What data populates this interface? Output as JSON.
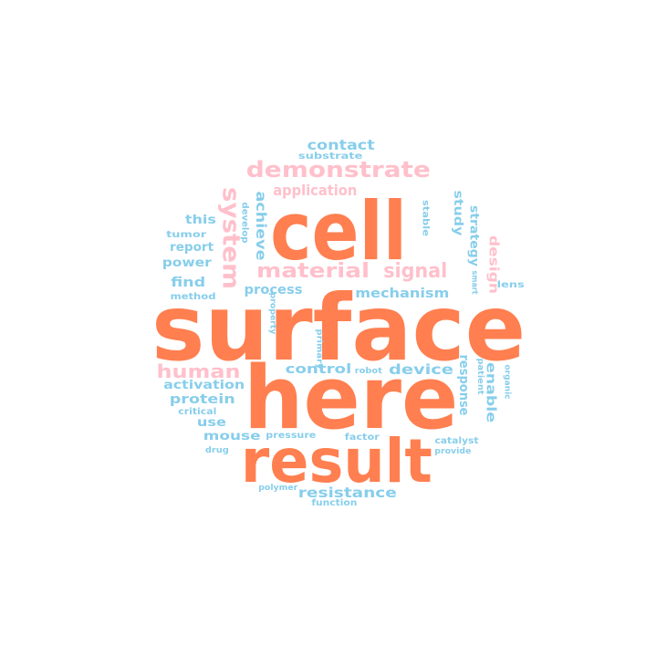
{
  "colors": {
    "orange": "#ff7f50",
    "pink": "#ffc0cb",
    "blue": "#87ceeb"
  },
  "words": [
    {
      "text": "cell",
      "color": "orange"
    },
    {
      "text": "surface",
      "color": "orange"
    },
    {
      "text": "here",
      "color": "orange"
    },
    {
      "text": "result",
      "color": "orange"
    },
    {
      "text": "demonstrate",
      "color": "pink"
    },
    {
      "text": "system",
      "color": "pink"
    },
    {
      "text": "material",
      "color": "pink"
    },
    {
      "text": "signal",
      "color": "pink"
    },
    {
      "text": "human",
      "color": "pink"
    },
    {
      "text": "application",
      "color": "pink"
    },
    {
      "text": "design",
      "color": "pink"
    },
    {
      "text": "contact",
      "color": "blue"
    },
    {
      "text": "substrate",
      "color": "blue"
    },
    {
      "text": "this",
      "color": "blue"
    },
    {
      "text": "achieve",
      "color": "blue"
    },
    {
      "text": "develop",
      "color": "blue"
    },
    {
      "text": "tumor",
      "color": "blue"
    },
    {
      "text": "report",
      "color": "blue"
    },
    {
      "text": "power",
      "color": "blue"
    },
    {
      "text": "find",
      "color": "blue"
    },
    {
      "text": "method",
      "color": "blue"
    },
    {
      "text": "process",
      "color": "blue"
    },
    {
      "text": "mechanism",
      "color": "blue"
    },
    {
      "text": "study",
      "color": "blue"
    },
    {
      "text": "strategy",
      "color": "blue"
    },
    {
      "text": "stable",
      "color": "blue"
    },
    {
      "text": "smart",
      "color": "blue"
    },
    {
      "text": "lens",
      "color": "blue"
    },
    {
      "text": "property",
      "color": "blue"
    },
    {
      "text": "primary",
      "color": "blue"
    },
    {
      "text": "control",
      "color": "blue"
    },
    {
      "text": "device",
      "color": "blue"
    },
    {
      "text": "robot",
      "color": "blue"
    },
    {
      "text": "activation",
      "color": "blue"
    },
    {
      "text": "protein",
      "color": "blue"
    },
    {
      "text": "critical",
      "color": "blue"
    },
    {
      "text": "use",
      "color": "blue"
    },
    {
      "text": "response",
      "color": "blue"
    },
    {
      "text": "patient",
      "color": "blue"
    },
    {
      "text": "enable",
      "color": "blue"
    },
    {
      "text": "organic",
      "color": "blue"
    },
    {
      "text": "mouse",
      "color": "blue"
    },
    {
      "text": "pressure",
      "color": "blue"
    },
    {
      "text": "factor",
      "color": "blue"
    },
    {
      "text": "catalyst",
      "color": "blue"
    },
    {
      "text": "drug",
      "color": "blue"
    },
    {
      "text": "provide",
      "color": "blue"
    },
    {
      "text": "polymer",
      "color": "blue"
    },
    {
      "text": "resistance",
      "color": "blue"
    },
    {
      "text": "function",
      "color": "blue"
    }
  ]
}
